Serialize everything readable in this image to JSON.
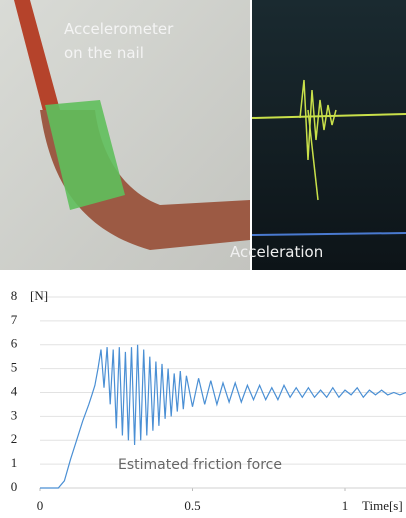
{
  "photos": {
    "left_label": "Accelerometer\non the nail",
    "right_label": "Acceleration"
  },
  "chart_data": {
    "type": "line",
    "y_label": "[N]",
    "x_label": "Time[s]",
    "annotation": "Estimated friction force",
    "x": [
      0,
      0.02,
      0.04,
      0.06,
      0.08,
      0.1,
      0.12,
      0.14,
      0.16,
      0.17,
      0.18,
      0.19,
      0.2,
      0.21,
      0.22,
      0.23,
      0.24,
      0.25,
      0.26,
      0.27,
      0.28,
      0.29,
      0.3,
      0.31,
      0.32,
      0.33,
      0.34,
      0.35,
      0.36,
      0.37,
      0.38,
      0.39,
      0.4,
      0.41,
      0.42,
      0.43,
      0.44,
      0.45,
      0.46,
      0.47,
      0.48,
      0.5,
      0.52,
      0.54,
      0.56,
      0.58,
      0.6,
      0.62,
      0.64,
      0.66,
      0.68,
      0.7,
      0.72,
      0.74,
      0.76,
      0.78,
      0.8,
      0.82,
      0.84,
      0.86,
      0.88,
      0.9,
      0.92,
      0.94,
      0.96,
      0.98,
      1.0,
      1.02,
      1.04,
      1.06,
      1.08,
      1.1,
      1.12,
      1.14,
      1.16,
      1.18,
      1.2
    ],
    "series": [
      {
        "color": "#4a8fd4",
        "values": [
          0,
          0,
          0,
          0,
          0.3,
          1.2,
          2.0,
          2.8,
          3.5,
          3.9,
          4.3,
          5.0,
          5.8,
          4.2,
          5.9,
          3.5,
          5.8,
          2.5,
          5.9,
          2.2,
          5.7,
          2.0,
          5.9,
          1.8,
          6.0,
          2.0,
          5.8,
          2.2,
          5.5,
          2.4,
          5.3,
          2.6,
          5.2,
          2.9,
          5.0,
          3.0,
          4.8,
          3.2,
          4.9,
          3.3,
          4.7,
          3.4,
          4.6,
          3.5,
          4.5,
          3.5,
          4.4,
          3.6,
          4.4,
          3.6,
          4.3,
          3.7,
          4.3,
          3.7,
          4.2,
          3.7,
          4.3,
          3.8,
          4.2,
          3.8,
          4.2,
          3.8,
          4.1,
          3.8,
          4.2,
          3.8,
          4.1,
          3.9,
          4.2,
          3.8,
          4.1,
          3.9,
          4.1,
          3.9,
          4.0,
          3.9,
          4.0
        ]
      }
    ],
    "xlim": [
      0,
      1.2
    ],
    "xticks": [
      0,
      0.5,
      1
    ],
    "ylim": [
      0,
      8
    ],
    "yticks": [
      0,
      1,
      2,
      3,
      4,
      5,
      6,
      7,
      8
    ],
    "grid": true
  }
}
